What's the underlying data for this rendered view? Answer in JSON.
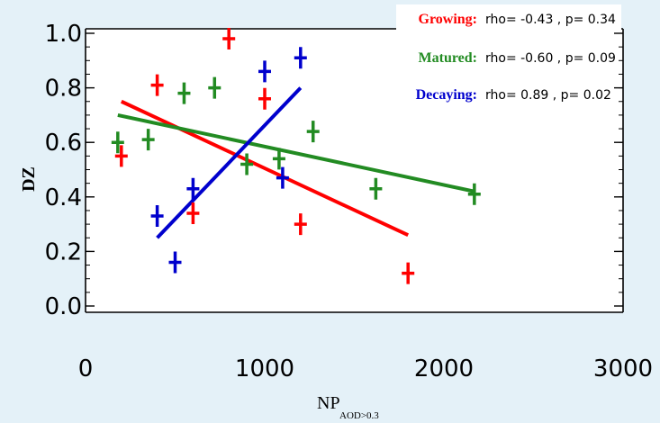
{
  "chart_data": {
    "type": "scatter",
    "xlabel": "NP",
    "xlabel_sub": "AOD>0.3",
    "ylabel": "DZ",
    "xlim": [
      0,
      3000
    ],
    "ylim": [
      0.0,
      1.0
    ],
    "xticks": [
      0,
      1000,
      2000,
      3000
    ],
    "xtick_labels": [
      "0",
      "1000",
      "2000",
      "3000"
    ],
    "yticks": [
      0.0,
      0.2,
      0.4,
      0.6,
      0.8,
      1.0
    ],
    "ytick_labels": [
      "0.0",
      "0.2",
      "0.4",
      "0.6",
      "0.8",
      "1.0"
    ],
    "legend_placement": "top-right",
    "series": [
      {
        "name": "Growing:",
        "color": "#ff0000",
        "stats": "rho= -0.43 ,  p= 0.34",
        "points": [
          [
            200,
            0.55
          ],
          [
            400,
            0.81
          ],
          [
            600,
            0.34
          ],
          [
            800,
            0.98
          ],
          [
            1000,
            0.76
          ],
          [
            1200,
            0.3
          ],
          [
            1800,
            0.12
          ]
        ],
        "fit": [
          [
            200,
            0.75
          ],
          [
            1800,
            0.26
          ]
        ]
      },
      {
        "name": "Matured:",
        "color": "#228b22",
        "stats": "rho= -0.60 ,  p= 0.09",
        "points": [
          [
            180,
            0.6
          ],
          [
            350,
            0.61
          ],
          [
            550,
            0.78
          ],
          [
            720,
            0.8
          ],
          [
            900,
            0.52
          ],
          [
            1080,
            0.54
          ],
          [
            1270,
            0.64
          ],
          [
            1620,
            0.43
          ],
          [
            2170,
            0.41
          ]
        ],
        "fit": [
          [
            180,
            0.7
          ],
          [
            2170,
            0.42
          ]
        ]
      },
      {
        "name": "Decaying:",
        "color": "#0000cd",
        "stats": "rho= 0.89 ,  p= 0.02",
        "points": [
          [
            400,
            0.33
          ],
          [
            500,
            0.16
          ],
          [
            600,
            0.43
          ],
          [
            1000,
            0.86
          ],
          [
            1100,
            0.47
          ],
          [
            1200,
            0.91
          ]
        ],
        "fit": [
          [
            400,
            0.25
          ],
          [
            1200,
            0.8
          ]
        ]
      }
    ]
  }
}
